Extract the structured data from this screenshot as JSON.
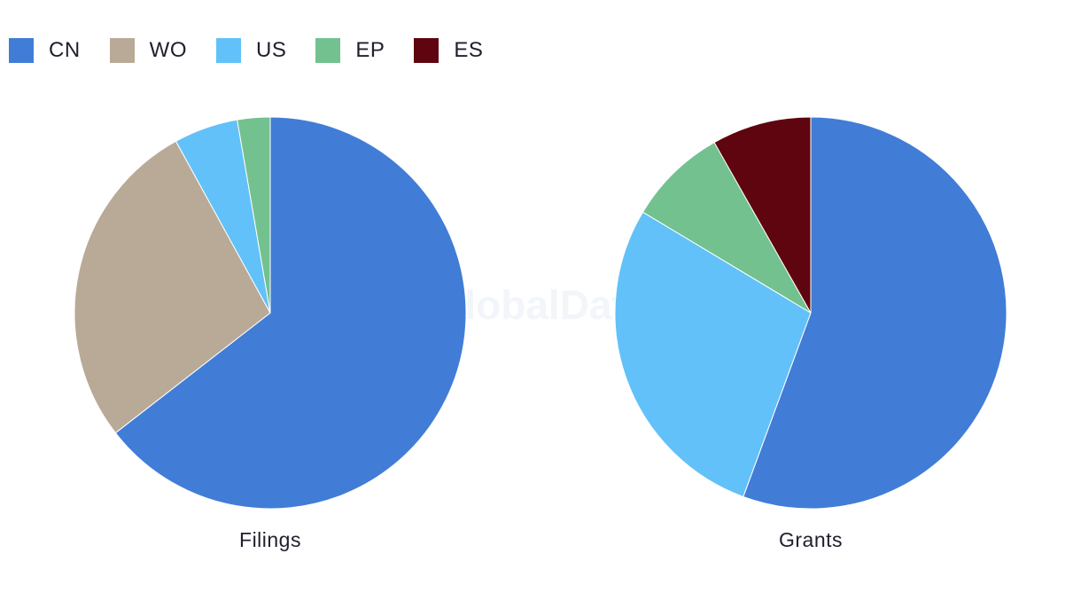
{
  "legend": [
    {
      "label": "CN",
      "color": "#417dd6"
    },
    {
      "label": "WO",
      "color": "#b8aa97"
    },
    {
      "label": "US",
      "color": "#62c1f8"
    },
    {
      "label": "EP",
      "color": "#73c18f"
    },
    {
      "label": "ES",
      "color": "#5f050f"
    }
  ],
  "watermark": "GlobalData",
  "chart_data": [
    {
      "type": "pie",
      "title": "Filings",
      "slices": [
        {
          "label": "CN",
          "value": 64.5,
          "color": "#417dd6"
        },
        {
          "label": "WO",
          "value": 27.5,
          "color": "#b8aa97"
        },
        {
          "label": "US",
          "value": 5.3,
          "color": "#62c1f8"
        },
        {
          "label": "EP",
          "value": 2.7,
          "color": "#73c18f"
        }
      ],
      "start": "top",
      "direction": "clockwise"
    },
    {
      "type": "pie",
      "title": "Grants",
      "slices": [
        {
          "label": "CN",
          "value": 55.6,
          "color": "#417dd6"
        },
        {
          "label": "US",
          "value": 28.0,
          "color": "#62c1f8"
        },
        {
          "label": "EP",
          "value": 8.2,
          "color": "#73c18f"
        },
        {
          "label": "ES",
          "value": 8.2,
          "color": "#5f050f"
        }
      ],
      "start": "top",
      "direction": "clockwise"
    }
  ]
}
